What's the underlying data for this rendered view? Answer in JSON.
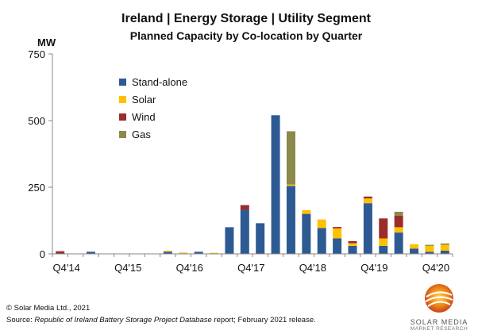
{
  "chart_data": {
    "type": "bar",
    "stacked": true,
    "title": "Ireland | Energy Storage | Utility Segment",
    "subtitle": "Planned Capacity by Co-location by Quarter",
    "ylabel": "MW",
    "ylim": [
      0,
      750
    ],
    "yticks": [
      0,
      250,
      500,
      750
    ],
    "x_tick_labels": [
      "Q4'14",
      "Q4'15",
      "Q4'16",
      "Q4'17",
      "Q4'18",
      "Q4'19",
      "Q4'20"
    ],
    "legend_position": "upper-left-inside",
    "series": [
      {
        "name": "Stand-alone",
        "color": "#2E5A94",
        "values": [
          0,
          0,
          8,
          0,
          0,
          0,
          0,
          8,
          2,
          8,
          0,
          100,
          165,
          115,
          520,
          255,
          150,
          97,
          58,
          30,
          190,
          30,
          80,
          20,
          8,
          12
        ]
      },
      {
        "name": "Solar",
        "color": "#FFC000",
        "values": [
          0,
          0,
          0,
          0,
          0,
          0,
          0,
          4,
          3,
          0,
          4,
          0,
          0,
          0,
          0,
          5,
          14,
          32,
          38,
          10,
          18,
          28,
          20,
          16,
          22,
          22
        ]
      },
      {
        "name": "Wind",
        "color": "#9B2D2D",
        "values": [
          10,
          0,
          0,
          0,
          0,
          0,
          0,
          0,
          0,
          0,
          0,
          0,
          18,
          0,
          0,
          0,
          0,
          0,
          5,
          8,
          7,
          75,
          43,
          0,
          0,
          0
        ]
      },
      {
        "name": "Gas",
        "color": "#8C8A4A",
        "values": [
          0,
          0,
          0,
          0,
          0,
          0,
          0,
          0,
          0,
          0,
          0,
          0,
          0,
          0,
          0,
          200,
          0,
          0,
          0,
          0,
          0,
          0,
          15,
          0,
          4,
          5
        ]
      }
    ]
  },
  "footer": {
    "copyright": "© Solar Media Ltd., 2021",
    "source_prefix": "Source: ",
    "source_title": "Republic of Ireland Battery Storage Project Database",
    "source_suffix": " report; February 2021 release."
  },
  "logo": {
    "line1": "SOLAR MEDIA",
    "line2": "MARKET RESEARCH"
  }
}
